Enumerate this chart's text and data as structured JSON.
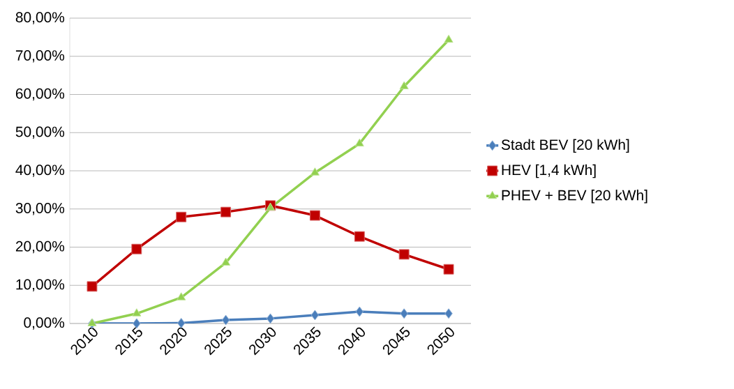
{
  "chart_data": {
    "type": "line",
    "categories": [
      "2010",
      "2015",
      "2020",
      "2025",
      "2030",
      "2035",
      "2040",
      "2045",
      "2050"
    ],
    "series": [
      {
        "name": "Stadt BEV [20 kWh]",
        "color": "#4a7ebb",
        "marker": "diamond",
        "values": [
          0,
          0,
          0.1,
          0.9,
          1.3,
          2.2,
          3.1,
          2.6,
          2.6
        ]
      },
      {
        "name": "HEV [1,4 kWh]",
        "color": "#c00000",
        "marker": "square",
        "values": [
          9.7,
          19.5,
          27.9,
          29.2,
          30.9,
          28.3,
          22.8,
          18.1,
          14.2
        ]
      },
      {
        "name": "PHEV + BEV [20 kWh]",
        "color": "#92d050",
        "marker": "triangle",
        "values": [
          0,
          2.6,
          6.8,
          15.9,
          30.3,
          39.5,
          47.1,
          62.1,
          74.3
        ]
      }
    ],
    "ylim": [
      0,
      80
    ],
    "yticks": [
      {
        "value": 0,
        "label": "0,00%"
      },
      {
        "value": 10,
        "label": "10,00%"
      },
      {
        "value": 20,
        "label": "20,00%"
      },
      {
        "value": 30,
        "label": "30,00%"
      },
      {
        "value": 40,
        "label": "40,00%"
      },
      {
        "value": 50,
        "label": "50,00%"
      },
      {
        "value": 60,
        "label": "60,00%"
      },
      {
        "value": 70,
        "label": "70,00%"
      },
      {
        "value": 80,
        "label": "80,00%"
      }
    ],
    "grid": "y",
    "legend": "right",
    "line_style": "solid"
  }
}
